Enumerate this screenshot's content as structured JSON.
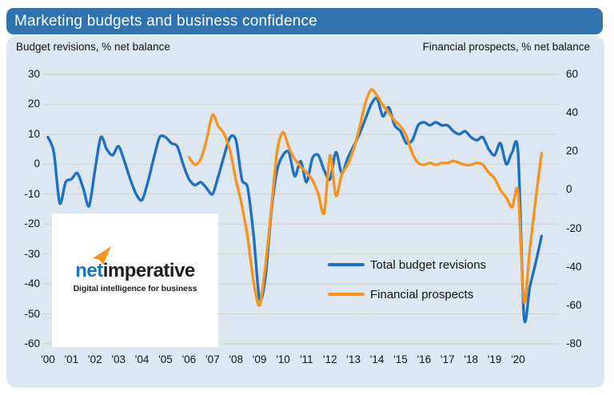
{
  "header": {
    "title": "Marketing budgets and business confidence"
  },
  "colors": {
    "title_bar_bg": "#2e73ad",
    "panel_bg": "#dce7f1",
    "grid": "#d7d3cd",
    "budget_line": "#1f70c1",
    "prospects_line": "#f6941e",
    "logo_blue": "#1b75bb",
    "logo_black": "#1d1d1b",
    "logo_orange": "#f6921e"
  },
  "logo": {
    "brand_prefix": "net",
    "brand_suffix": "imperative",
    "tagline": "Digital intelligence for business"
  },
  "chart_data": {
    "type": "line",
    "title": "Marketing budgets and business confidence",
    "grid": true,
    "legend_position": "inside-right",
    "left_axis": {
      "title": "Budget revisions, % net balance",
      "max": 30,
      "min": -60,
      "ticks": [
        30,
        20,
        10,
        0,
        -10,
        -20,
        -30,
        -40,
        -50,
        -60
      ]
    },
    "right_axis": {
      "title": "Financial prospects, % net balance",
      "max": 60,
      "min": -80,
      "ticks": [
        60,
        40,
        20,
        0,
        -20,
        -40,
        -60,
        -80
      ]
    },
    "x_tick_labels": [
      "'00",
      "'01",
      "'02",
      "'03",
      "'04",
      "'05",
      "'06",
      "'07",
      "'08",
      "'09",
      "'10",
      "'11",
      "'12",
      "'13",
      "'14",
      "'15",
      "'16",
      "'17",
      "'18",
      "'19",
      "'20"
    ],
    "series": [
      {
        "name": "Total budget revisions",
        "axis": "left",
        "color": "#1f70c1",
        "frequency": "quarterly",
        "start_year": 2000,
        "start_quarter": 1,
        "values": [
          9,
          4,
          -13,
          -6,
          -5,
          -3,
          -8,
          -14,
          -2,
          9,
          5,
          3,
          6,
          1,
          -5,
          -10,
          -12,
          -6,
          2,
          9,
          9,
          7,
          6,
          0,
          -5,
          -7,
          -6,
          -8,
          -10,
          -4,
          3,
          9,
          8,
          -5,
          -8,
          -24,
          -45,
          -38,
          -16,
          -2,
          3,
          4,
          -4,
          1,
          -6,
          2,
          3,
          -2,
          -5,
          4,
          -3,
          2,
          6,
          10,
          15,
          20,
          22,
          16,
          19,
          13,
          11,
          7,
          8,
          13,
          14,
          13,
          14,
          13,
          13,
          11,
          10,
          11,
          9,
          8,
          9,
          5,
          3,
          7,
          0,
          4,
          4,
          -51,
          -41,
          -33,
          -24
        ]
      },
      {
        "name": "Financial prospects",
        "axis": "right",
        "color": "#f6941e",
        "frequency": "quarterly",
        "start_year": 2006,
        "start_quarter": 1,
        "values": [
          17,
          13,
          16,
          26,
          39,
          33,
          29,
          20,
          5,
          -8,
          -25,
          -48,
          -60,
          -40,
          -10,
          20,
          30,
          22,
          16,
          12,
          9,
          5,
          -2,
          -12,
          18,
          -3,
          8,
          13,
          21,
          32,
          45,
          52,
          49,
          44,
          40,
          36,
          33,
          28,
          19,
          14,
          13,
          14,
          13,
          14,
          14,
          15,
          14,
          13,
          13,
          14,
          13,
          9,
          6,
          0,
          -4,
          -9,
          -1,
          -58,
          -31,
          -5,
          19
        ]
      }
    ]
  }
}
